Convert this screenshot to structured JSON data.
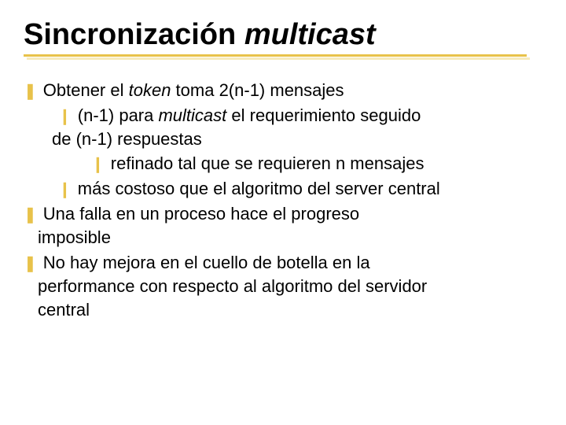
{
  "colors": {
    "bullet": "#e8c24a",
    "underline_main": "#e8c24a",
    "underline_shadow": "#f3e2a0",
    "text": "#000000",
    "background": "#ffffff"
  },
  "typography": {
    "title_font": "Arial",
    "title_size_pt": 38,
    "title_weight": "bold",
    "body_font": "Verdana",
    "body_size_pt": 22
  },
  "glyphs": {
    "level1": "❚",
    "level2": "❙",
    "level3": "❙"
  },
  "title": {
    "part1": "Sincronización ",
    "part2_italic": "multicast"
  },
  "bullets": {
    "l1a_pre": "Obtener el ",
    "l1a_italic": "token",
    "l1a_post": " toma 2(n-1) mensajes",
    "l2a_pre": "(n-1) para ",
    "l2a_italic": "multicast ",
    "l2a_post": " el requerimiento seguido",
    "l2a_cont": "de (n-1) respuestas",
    "l3a": "refinado tal que se requieren n mensajes",
    "l2b": "más costoso que el algoritmo del server central",
    "l1b": "Una falla en un proceso hace el progreso",
    "l1b_cont": "imposible",
    "l1c": "No hay mejora en el cuello de botella en la",
    "l1c_cont1": "performance con respecto al algoritmo del servidor",
    "l1c_cont2": "central"
  }
}
